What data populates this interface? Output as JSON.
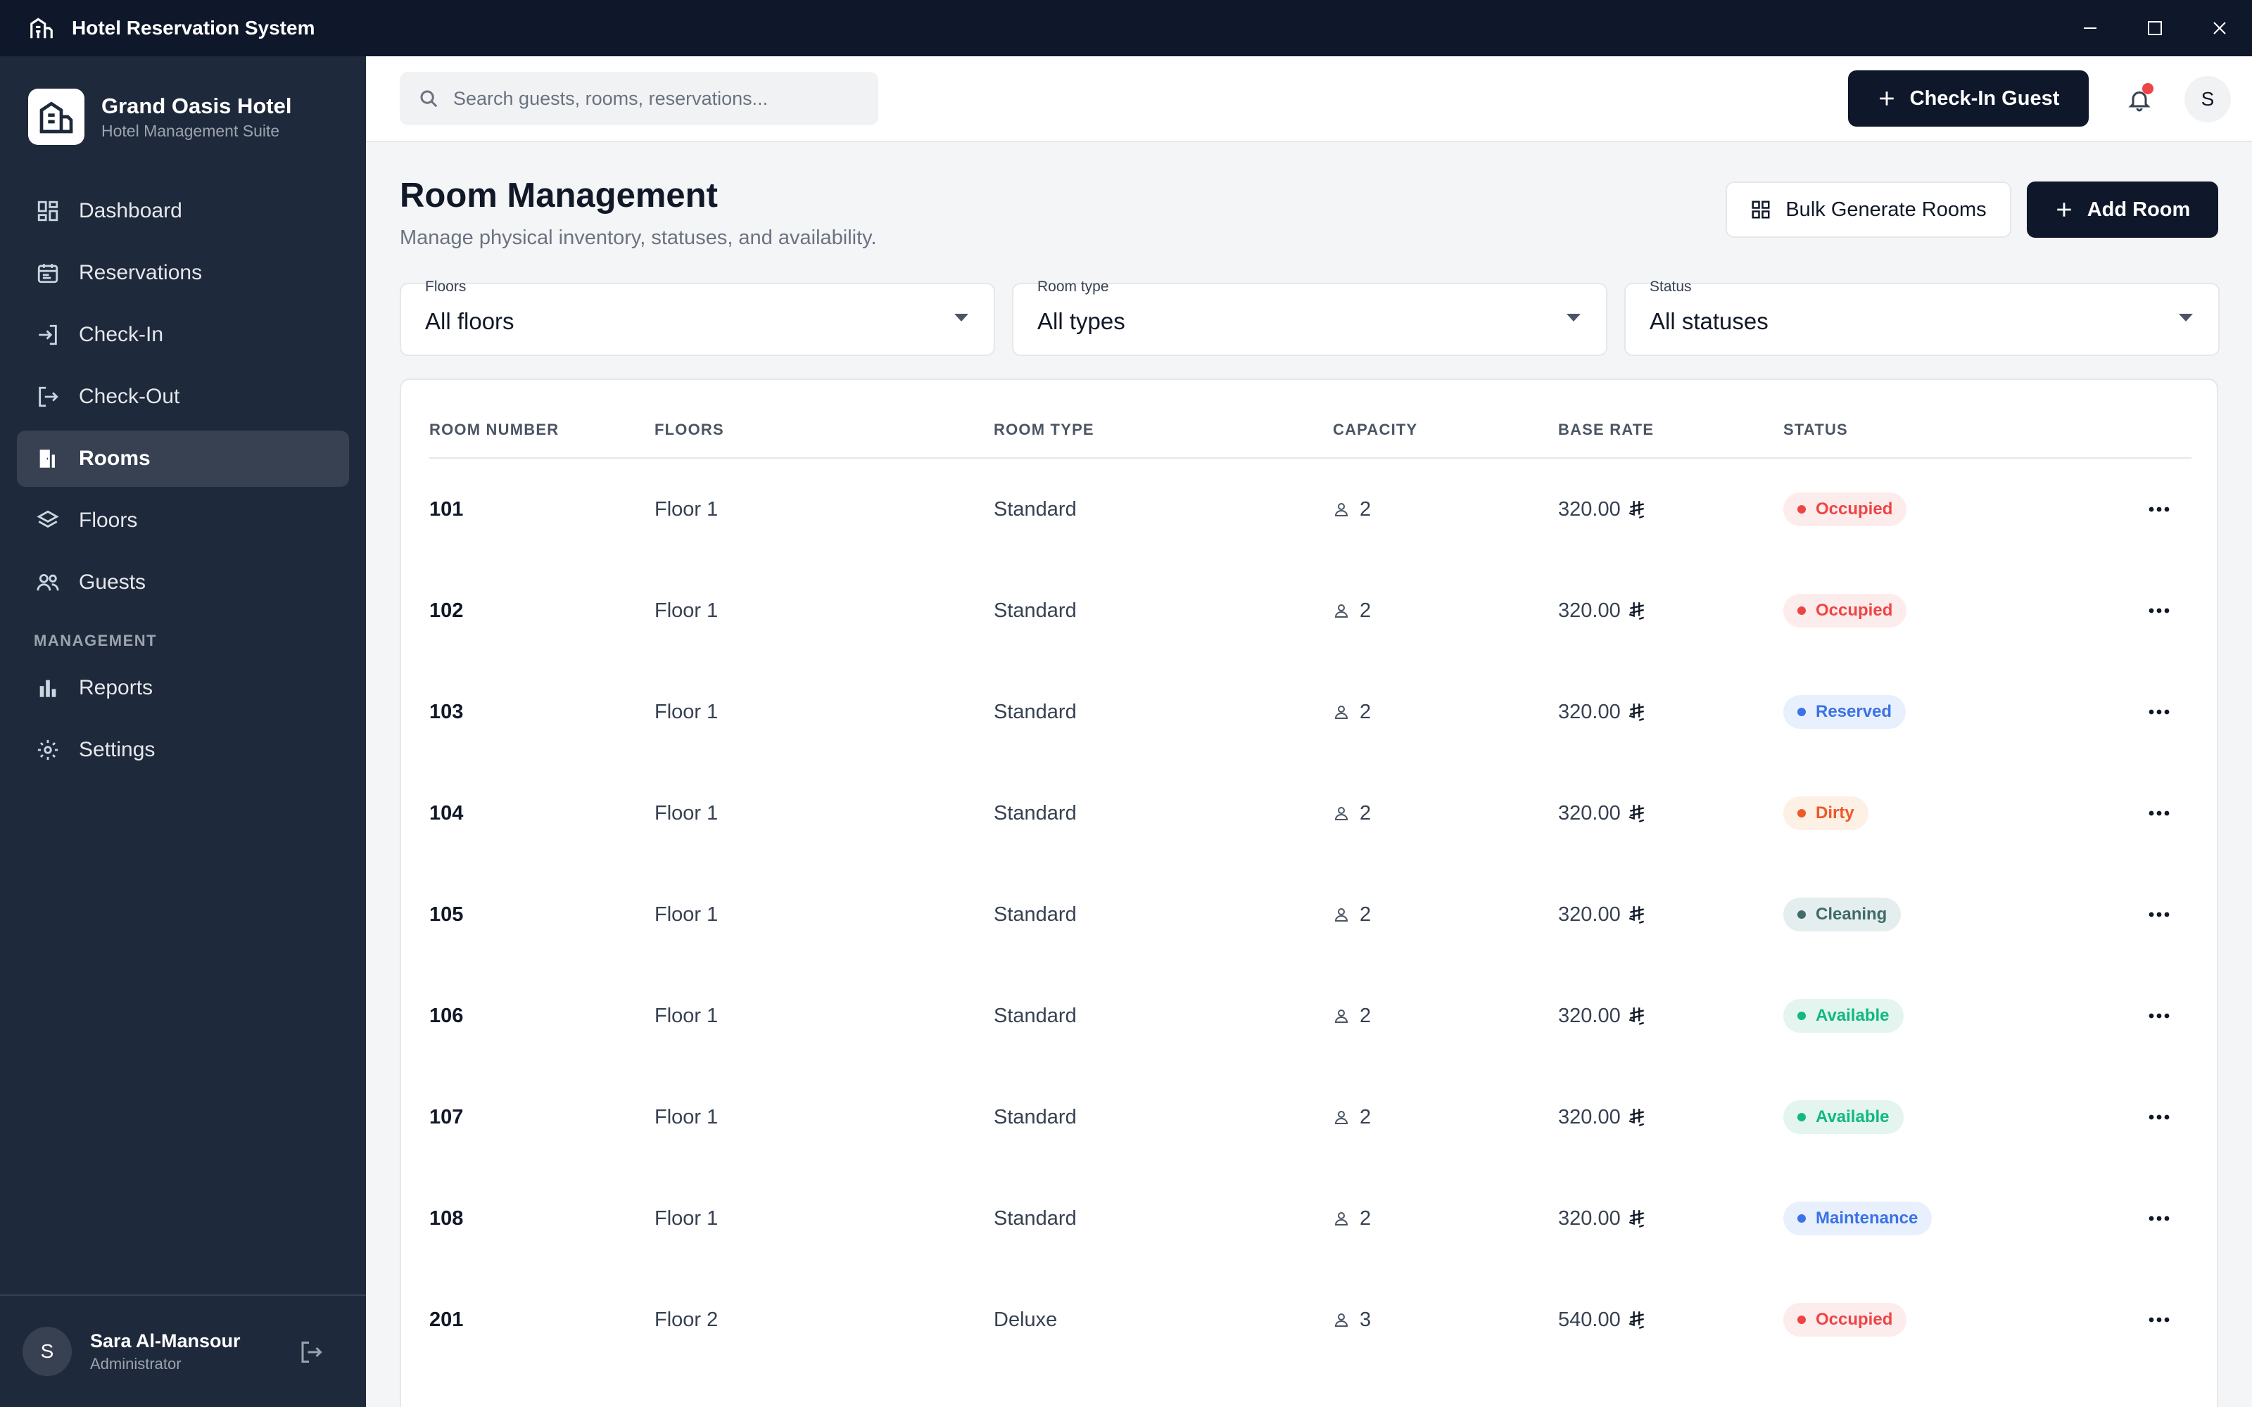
{
  "window": {
    "title": "Hotel Reservation System"
  },
  "brand": {
    "name": "Grand Oasis Hotel",
    "subtitle": "Hotel Management Suite"
  },
  "sidebar": {
    "items": [
      {
        "label": "Dashboard",
        "icon": "dashboard-icon"
      },
      {
        "label": "Reservations",
        "icon": "calendar-icon"
      },
      {
        "label": "Check-In",
        "icon": "login-icon"
      },
      {
        "label": "Check-Out",
        "icon": "logout-icon"
      },
      {
        "label": "Rooms",
        "icon": "door-icon",
        "active": true
      },
      {
        "label": "Floors",
        "icon": "layers-icon"
      },
      {
        "label": "Guests",
        "icon": "users-icon"
      }
    ],
    "section_label": "MANAGEMENT",
    "management_items": [
      {
        "label": "Reports",
        "icon": "bar-chart-icon"
      },
      {
        "label": "Settings",
        "icon": "gear-icon"
      }
    ]
  },
  "user": {
    "initial": "S",
    "name": "Sara Al-Mansour",
    "role": "Administrator"
  },
  "header": {
    "search_placeholder": "Search guests, rooms, reservations...",
    "checkin_label": "Check-In Guest",
    "avatar_initial": "S"
  },
  "page": {
    "title": "Room Management",
    "subtitle": "Manage physical inventory, statuses, and availability.",
    "bulk_label": "Bulk Generate Rooms",
    "add_label": "Add Room"
  },
  "filters": [
    {
      "label": "Floors",
      "value": "All floors"
    },
    {
      "label": "Room type",
      "value": "All types"
    },
    {
      "label": "Status",
      "value": "All statuses"
    }
  ],
  "table": {
    "columns": [
      "ROOM NUMBER",
      "FLOORS",
      "ROOM TYPE",
      "CAPACITY",
      "BASE RATE",
      "STATUS"
    ],
    "rows": [
      {
        "room": "101",
        "floor": "Floor 1",
        "type": "Standard",
        "capacity": "2",
        "rate": "320.00",
        "status": "Occupied"
      },
      {
        "room": "102",
        "floor": "Floor 1",
        "type": "Standard",
        "capacity": "2",
        "rate": "320.00",
        "status": "Occupied"
      },
      {
        "room": "103",
        "floor": "Floor 1",
        "type": "Standard",
        "capacity": "2",
        "rate": "320.00",
        "status": "Reserved"
      },
      {
        "room": "104",
        "floor": "Floor 1",
        "type": "Standard",
        "capacity": "2",
        "rate": "320.00",
        "status": "Dirty"
      },
      {
        "room": "105",
        "floor": "Floor 1",
        "type": "Standard",
        "capacity": "2",
        "rate": "320.00",
        "status": "Cleaning"
      },
      {
        "room": "106",
        "floor": "Floor 1",
        "type": "Standard",
        "capacity": "2",
        "rate": "320.00",
        "status": "Available"
      },
      {
        "room": "107",
        "floor": "Floor 1",
        "type": "Standard",
        "capacity": "2",
        "rate": "320.00",
        "status": "Available"
      },
      {
        "room": "108",
        "floor": "Floor 1",
        "type": "Standard",
        "capacity": "2",
        "rate": "320.00",
        "status": "Maintenance"
      },
      {
        "room": "201",
        "floor": "Floor 2",
        "type": "Deluxe",
        "capacity": "3",
        "rate": "540.00",
        "status": "Occupied"
      }
    ]
  },
  "status_colors": {
    "Occupied": {
      "bg": "#fdecec",
      "fg": "#ef4444"
    },
    "Reserved": {
      "bg": "#e8f0fd",
      "fg": "#3b72e6"
    },
    "Dirty": {
      "bg": "#fdf0e4",
      "fg": "#f0582a"
    },
    "Cleaning": {
      "bg": "#e5eeee",
      "fg": "#3f6b6b"
    },
    "Available": {
      "bg": "#e3f5ee",
      "fg": "#10b981"
    },
    "Maintenance": {
      "bg": "#e8f0fd",
      "fg": "#3b72e6"
    }
  }
}
